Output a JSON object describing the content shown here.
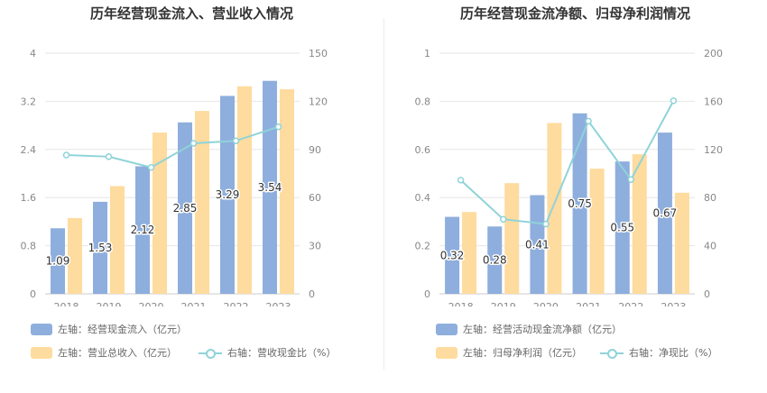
{
  "charts": [
    {
      "title": "历年经营现金流入、营业收入情况",
      "legend": {
        "bar1": "左轴：经营现金流入（亿元）",
        "bar2": "左轴：营业总收入（亿元）",
        "line": "右轴：营收现金比（%）"
      }
    },
    {
      "title": "历年经营现金流净额、归母净利润情况",
      "legend": {
        "bar1": "左轴：经营活动现金流净额（亿元）",
        "bar2": "左轴：归母净利润（亿元）",
        "line": "右轴：净现比（%）"
      }
    }
  ],
  "colors": {
    "bar1": "#8eaedd",
    "bar2": "#fedb9e",
    "line": "#8fd3d9"
  },
  "chart_data": [
    {
      "type": "bar",
      "title": "历年经营现金流入、营业收入情况",
      "categories": [
        "2018",
        "2019",
        "2020",
        "2021",
        "2022",
        "2023"
      ],
      "left_axis": {
        "min": 0,
        "max": 4,
        "ticks": [
          "0",
          "0.8",
          "1.6",
          "2.4",
          "3.2",
          "4"
        ]
      },
      "right_axis": {
        "min": 0,
        "max": 150,
        "ticks": [
          "0",
          "30",
          "60",
          "90",
          "120",
          "150"
        ]
      },
      "series": [
        {
          "name": "左轴：经营现金流入（亿元）",
          "axis": "left",
          "kind": "bar",
          "values": [
            1.09,
            1.53,
            2.12,
            2.85,
            3.29,
            3.54
          ],
          "labels": [
            "1.09",
            "1.53",
            "2.12",
            "2.85",
            "3.29",
            "3.54"
          ]
        },
        {
          "name": "左轴：营业总收入（亿元）",
          "axis": "left",
          "kind": "bar",
          "values": [
            1.26,
            1.79,
            2.68,
            3.04,
            3.45,
            3.4
          ]
        },
        {
          "name": "右轴：营收现金比（%）",
          "axis": "right",
          "kind": "line",
          "values": [
            86.5,
            85.5,
            78.8,
            93.8,
            95.4,
            104.1
          ]
        }
      ]
    },
    {
      "type": "bar",
      "title": "历年经营现金流净额、归母净利润情况",
      "categories": [
        "2018",
        "2019",
        "2020",
        "2021",
        "2022",
        "2023"
      ],
      "left_axis": {
        "min": 0,
        "max": 1,
        "ticks": [
          "0",
          "0.2",
          "0.4",
          "0.6",
          "0.8",
          "1"
        ]
      },
      "right_axis": {
        "min": 0,
        "max": 200,
        "ticks": [
          "0",
          "40",
          "80",
          "120",
          "160",
          "200"
        ]
      },
      "series": [
        {
          "name": "左轴：经营活动现金流净额（亿元）",
          "axis": "left",
          "kind": "bar",
          "values": [
            0.32,
            0.28,
            0.41,
            0.75,
            0.55,
            0.67
          ],
          "labels": [
            "0.32",
            "0.28",
            "0.41",
            "0.75",
            "0.55",
            "0.67"
          ]
        },
        {
          "name": "左轴：归母净利润（亿元）",
          "axis": "left",
          "kind": "bar",
          "values": [
            0.34,
            0.46,
            0.71,
            0.52,
            0.58,
            0.42
          ]
        },
        {
          "name": "右轴：净现比（%）",
          "axis": "right",
          "kind": "line",
          "values": [
            94.5,
            62.0,
            58.0,
            143.5,
            95.0,
            160.5
          ]
        }
      ]
    }
  ]
}
